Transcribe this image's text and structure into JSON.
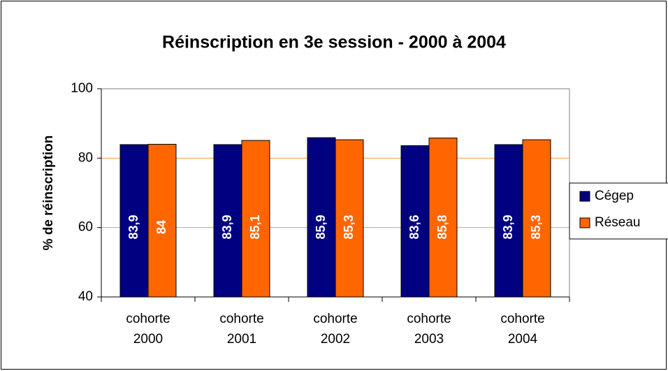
{
  "chart_data": {
    "type": "bar",
    "title": "Réinscription en 3e session - 2000 à 2004",
    "y_label": "% de réinscription",
    "categories": [
      "cohorte 2000",
      "cohorte 2001",
      "cohorte 2002",
      "cohorte 2003",
      "cohorte 2004"
    ],
    "series": [
      {
        "name": "Cégep",
        "color": "#000080",
        "values": [
          83.9,
          83.9,
          85.9,
          83.6,
          83.9
        ],
        "value_labels": [
          "83,9",
          "83,9",
          "85,9",
          "83,6",
          "83,9"
        ]
      },
      {
        "name": "Réseau",
        "color": "#ff6600",
        "values": [
          84,
          85.1,
          85.3,
          85.8,
          85.3
        ],
        "value_labels": [
          "84",
          "85,1",
          "85,3",
          "85,8",
          "85,3"
        ]
      }
    ],
    "ylim": [
      40,
      100
    ],
    "yticks": [
      40,
      60,
      80,
      100
    ],
    "grid": true,
    "grid_color": "#ff9933",
    "legend": "right"
  }
}
